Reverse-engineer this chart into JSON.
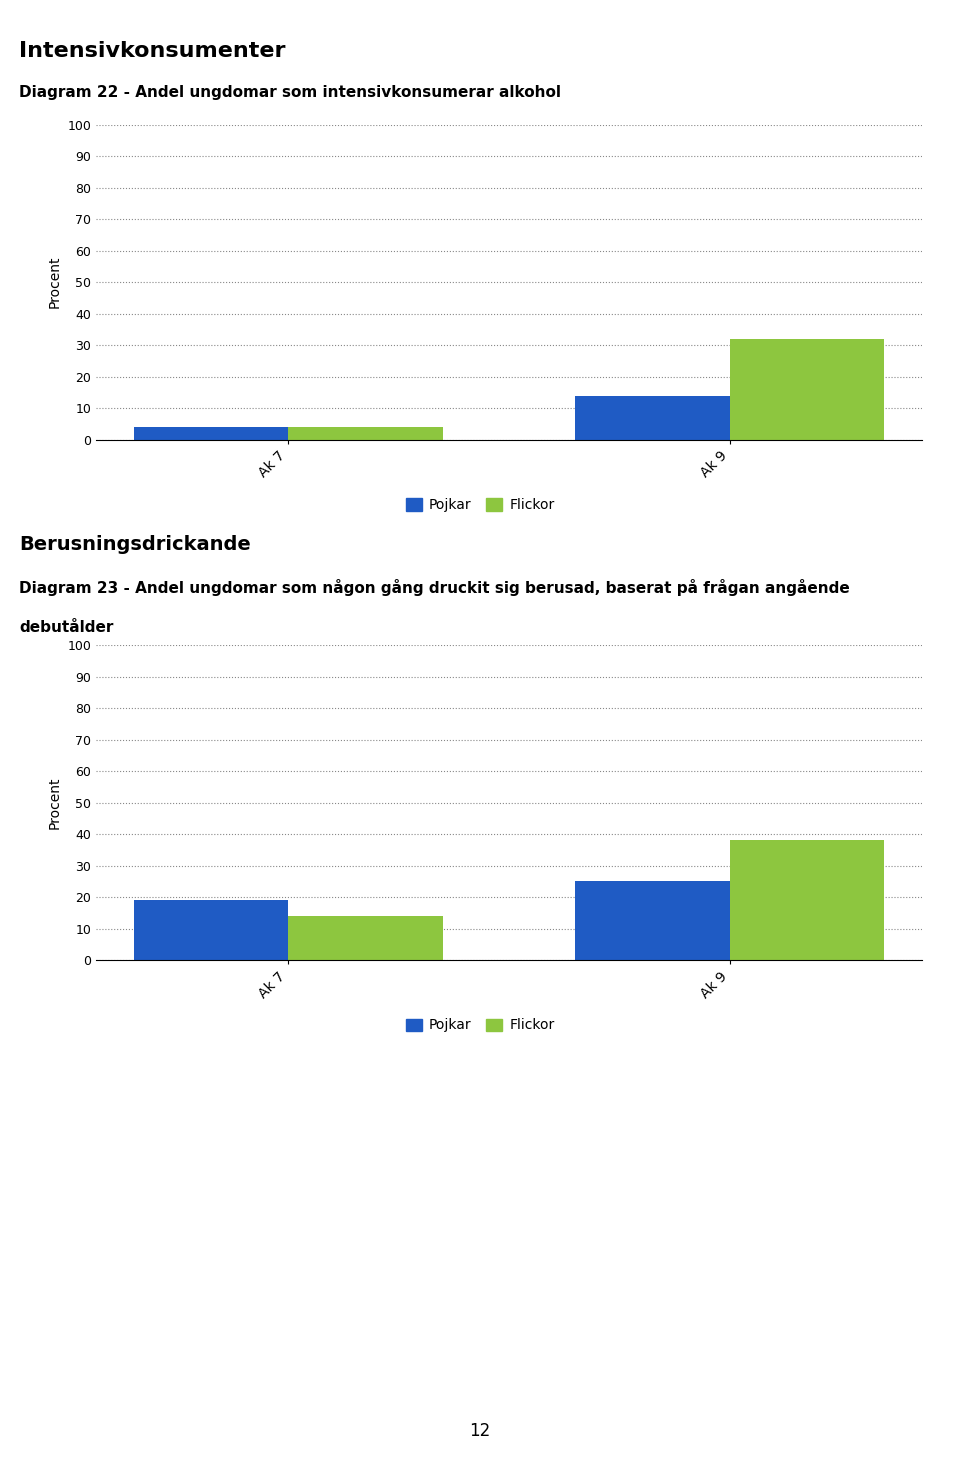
{
  "chart1": {
    "title": "Diagram 22 - Andel ungdomar som intensivkonsumerar alkohol",
    "categories": [
      "Ak 7",
      "Ak 9"
    ],
    "pojkar": [
      4,
      14
    ],
    "flickor": [
      4,
      32
    ],
    "ylabel": "Procent",
    "ylim": [
      0,
      100
    ],
    "yticks": [
      0,
      10,
      20,
      30,
      40,
      50,
      60,
      70,
      80,
      90,
      100
    ]
  },
  "chart2": {
    "title_line1": "Diagram 23 - Andel ungdomar som någon gång druckit sig berusad, baserat på frågan angående",
    "title_line2": "debutålder",
    "categories": [
      "Ak 7",
      "Ak 9"
    ],
    "pojkar": [
      19,
      25
    ],
    "flickor": [
      14,
      38
    ],
    "ylabel": "Procent",
    "ylim": [
      0,
      100
    ],
    "yticks": [
      0,
      10,
      20,
      30,
      40,
      50,
      60,
      70,
      80,
      90,
      100
    ]
  },
  "section1_title": "Intensivkonsumenter",
  "section2_title": "Berusningsdrickande",
  "pojkar_color": "#1F5BC4",
  "flickor_color": "#8DC63F",
  "legend_labels": [
    "Pojkar",
    "Flickor"
  ],
  "page_number": "12",
  "bar_width": 0.35
}
